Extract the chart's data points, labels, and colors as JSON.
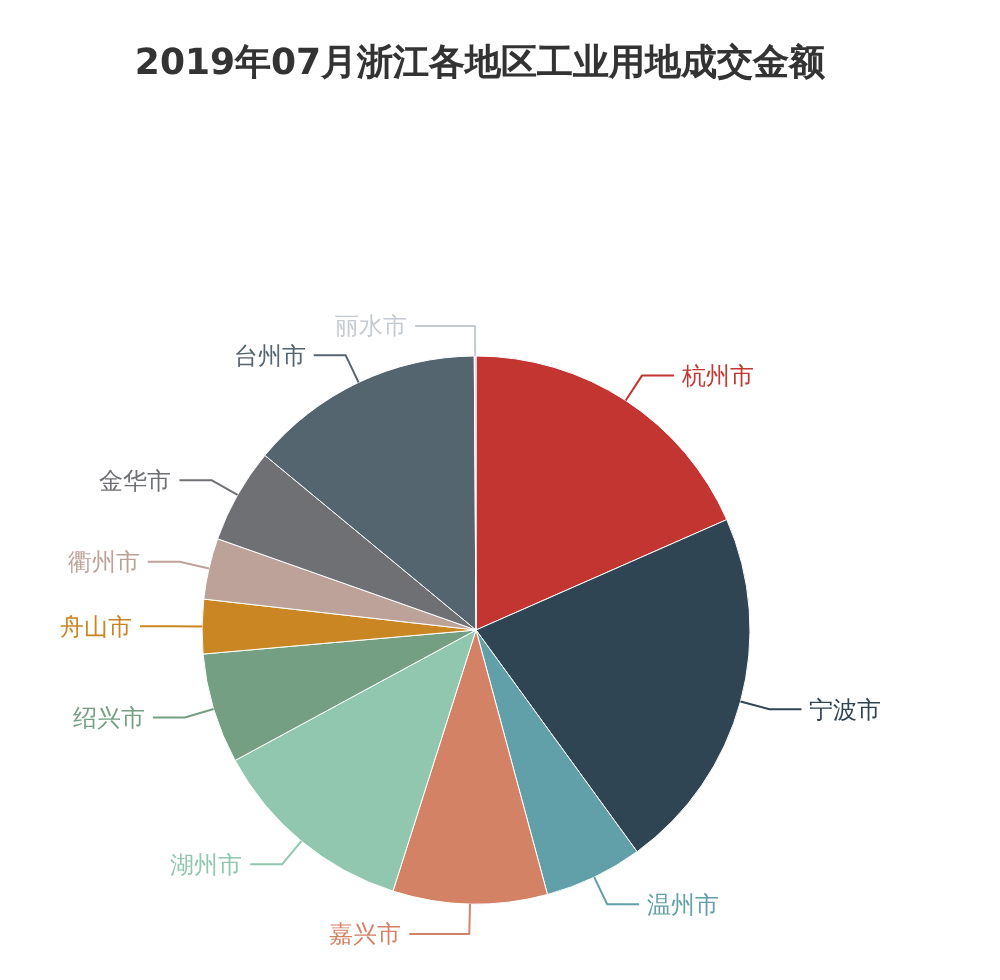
{
  "chart_data": {
    "type": "pie",
    "title": "2019年07月浙江各地区工业用地成交金额",
    "categories": [
      "杭州市",
      "宁波市",
      "温州市",
      "嘉兴市",
      "湖州市",
      "绍兴市",
      "舟山市",
      "衢州市",
      "金华市",
      "台州市",
      "丽水市"
    ],
    "values": [
      18.4,
      21.6,
      5.8,
      9.1,
      12.2,
      6.5,
      3.2,
      3.6,
      5.6,
      13.9,
      0.1
    ],
    "colors": [
      "#c23531",
      "#2f4554",
      "#61a0a8",
      "#d48265",
      "#91c7ae",
      "#749f83",
      "#ca8622",
      "#bda29a",
      "#6e7074",
      "#546570",
      "#c4ccd3"
    ]
  }
}
